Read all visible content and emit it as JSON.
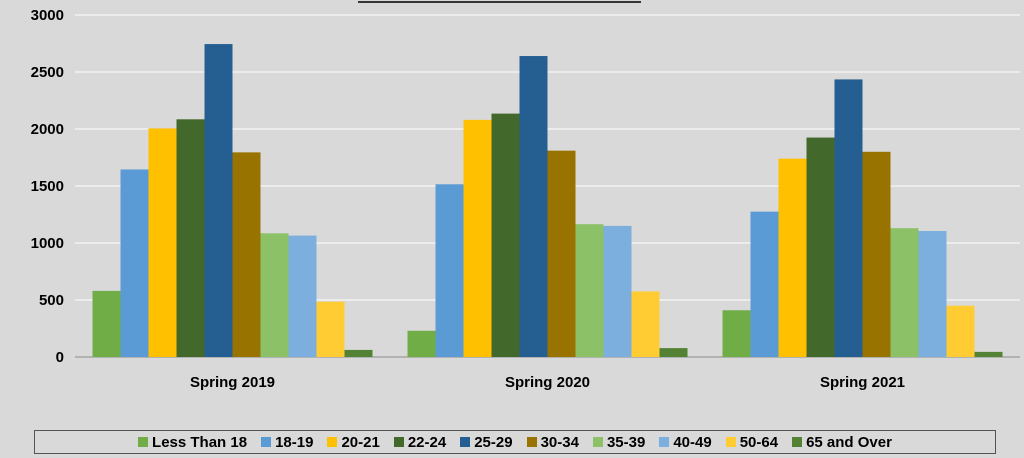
{
  "chart_data": {
    "type": "bar",
    "title": "",
    "xlabel": "",
    "ylabel": "",
    "ylim": [
      0,
      3000
    ],
    "yticks": [
      0,
      500,
      1000,
      1500,
      2000,
      2500,
      3000
    ],
    "grid": true,
    "legend_position": "bottom",
    "categories": [
      "Spring 2019",
      "Spring 2020",
      "Spring 2021"
    ],
    "series": [
      {
        "name": "Less Than 18",
        "color": "#70ad47",
        "values": [
          580,
          230,
          410
        ]
      },
      {
        "name": "18-19",
        "color": "#5b9bd5",
        "values": [
          1645,
          1515,
          1275
        ]
      },
      {
        "name": "20-21",
        "color": "#ffc000",
        "values": [
          2005,
          2080,
          1740
        ]
      },
      {
        "name": "22-24",
        "color": "#43682b",
        "values": [
          2085,
          2135,
          1925
        ]
      },
      {
        "name": "25-29",
        "color": "#255e91",
        "values": [
          2745,
          2640,
          2435
        ]
      },
      {
        "name": "30-34",
        "color": "#997300",
        "values": [
          1795,
          1810,
          1800
        ]
      },
      {
        "name": "35-39",
        "color": "#8cc168",
        "values": [
          1085,
          1165,
          1130
        ]
      },
      {
        "name": "40-49",
        "color": "#7cafdd",
        "values": [
          1065,
          1150,
          1105
        ]
      },
      {
        "name": "50-64",
        "color": "#ffcd33",
        "values": [
          485,
          575,
          450
        ]
      },
      {
        "name": "65 and Over",
        "color": "#548235",
        "values": [
          62,
          78,
          45
        ]
      }
    ]
  }
}
